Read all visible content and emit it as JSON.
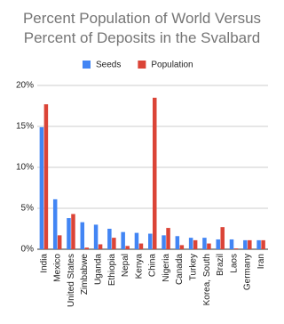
{
  "chart_data": {
    "type": "bar",
    "title": "Percent Population of World Versus Percent of Deposits in the Svalbard",
    "categories": [
      "India",
      "Mexico",
      "United States",
      "Zimbabwe",
      "Uganda",
      "Ethiopia",
      "Nepal",
      "Kenya",
      "China",
      "Nigeria",
      "Canada",
      "Turkey",
      "Korea, South",
      "Brazil",
      "Laos",
      "Germany",
      "Iran"
    ],
    "series": [
      {
        "name": "Seeds",
        "color": "#4285f4",
        "values": [
          14.9,
          6.1,
          3.8,
          3.3,
          3.0,
          2.5,
          2.1,
          2.0,
          1.9,
          1.7,
          1.6,
          1.4,
          1.4,
          1.2,
          1.2,
          1.1,
          1.1
        ]
      },
      {
        "name": "Population",
        "color": "#db4437",
        "values": [
          17.7,
          1.7,
          4.3,
          0.2,
          0.6,
          1.4,
          0.4,
          0.7,
          18.5,
          2.6,
          0.5,
          1.1,
          0.7,
          2.7,
          0.1,
          1.1,
          1.1
        ]
      }
    ],
    "ylim": [
      0,
      20
    ],
    "yticks": [
      {
        "value": 0,
        "label": "0%"
      },
      {
        "value": 5,
        "label": "5%"
      },
      {
        "value": 10,
        "label": "10%"
      },
      {
        "value": 15,
        "label": "15%"
      },
      {
        "value": 20,
        "label": "20%"
      }
    ],
    "grid": true,
    "legend": "top"
  }
}
